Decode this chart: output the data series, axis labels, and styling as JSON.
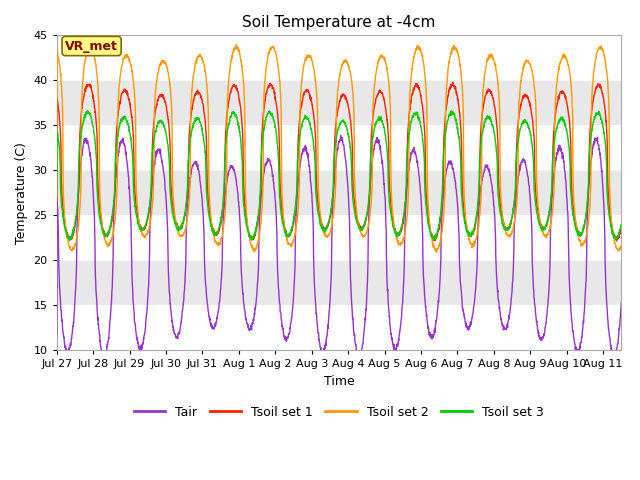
{
  "title": "Soil Temperature at -4cm",
  "xlabel": "Time",
  "ylabel": "Temperature (C)",
  "ylim": [
    10,
    45
  ],
  "yticks": [
    10,
    15,
    20,
    25,
    30,
    35,
    40,
    45
  ],
  "colors": {
    "Tair": "#9933cc",
    "Tsoil_set1": "#ff2200",
    "Tsoil_set2": "#ff9900",
    "Tsoil_set3": "#00cc00"
  },
  "legend_labels": [
    "Tair",
    "Tsoil set 1",
    "Tsoil set 2",
    "Tsoil set 3"
  ],
  "annotation_text": "VR_met",
  "annotation_color": "#880000",
  "annotation_bg": "#ffff88",
  "annotation_edge": "#886600",
  "band_colors": [
    "#ffffff",
    "#e8e8e8"
  ],
  "n_days": 15.5,
  "periods_per_day": 144
}
